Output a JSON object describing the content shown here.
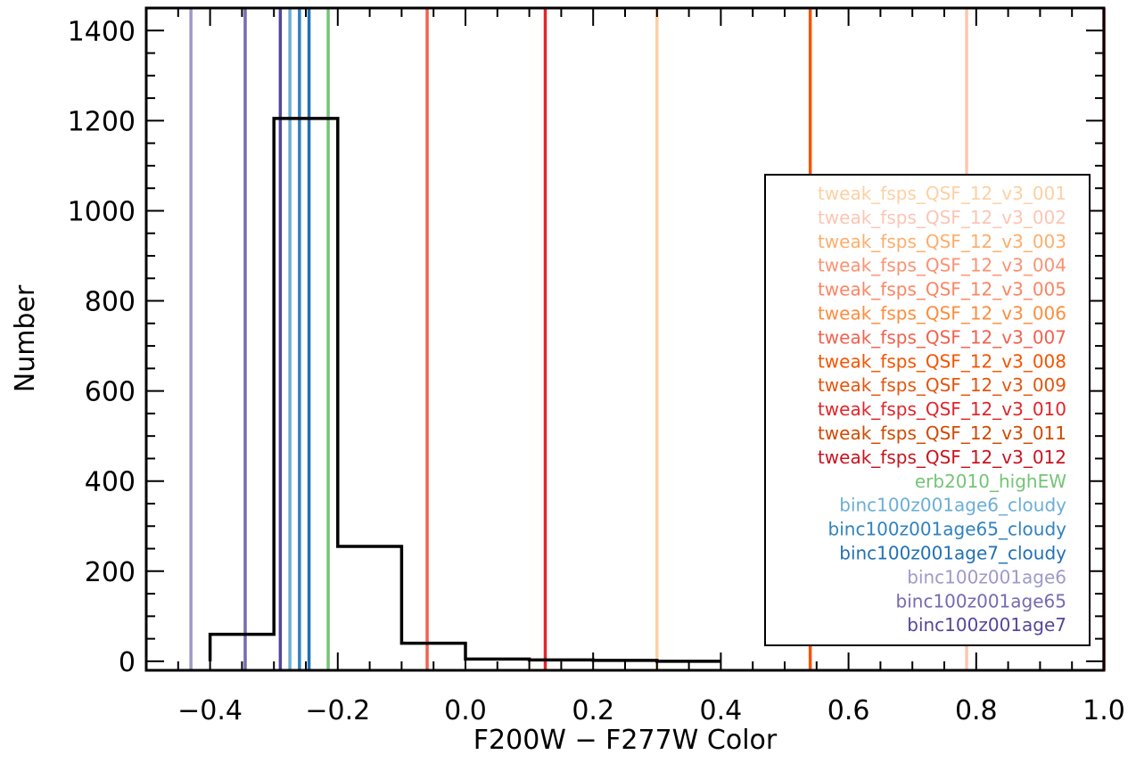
{
  "chart_data": {
    "type": "bar",
    "subtype": "step-histogram-with-vertical-reference-lines",
    "xlabel": "F200W − F277W Color",
    "ylabel": "Number",
    "xlim": [
      -0.5,
      1.0
    ],
    "ylim": [
      -20,
      1450
    ],
    "x_ticks": [
      -0.4,
      -0.2,
      0.0,
      0.2,
      0.4,
      0.6,
      0.8,
      1.0
    ],
    "x_tick_labels": [
      "−0.4",
      "−0.2",
      "0.0",
      "0.2",
      "0.4",
      "0.6",
      "0.8",
      "1.0"
    ],
    "y_ticks": [
      0,
      200,
      400,
      600,
      800,
      1000,
      1200,
      1400
    ],
    "y_tick_labels": [
      "0",
      "200",
      "400",
      "600",
      "800",
      "1000",
      "1200",
      "1400"
    ],
    "grid": false,
    "histogram": {
      "bin_edges": [
        -0.4,
        -0.3,
        -0.2,
        -0.1,
        0.0,
        0.1,
        0.2,
        0.3,
        0.4
      ],
      "counts": [
        60,
        1205,
        255,
        40,
        5,
        3,
        2,
        0
      ],
      "color": "#000000"
    },
    "legend_position": "right",
    "series": [
      {
        "name": "tweak_fsps_QSF_12_v3_001",
        "x": 0.3,
        "color": "#FDD0A2"
      },
      {
        "name": "tweak_fsps_QSF_12_v3_002",
        "x": 0.785,
        "color": "#FCC5B3"
      },
      {
        "name": "tweak_fsps_QSF_12_v3_003",
        "x": null,
        "color": "#FDAE6B"
      },
      {
        "name": "tweak_fsps_QSF_12_v3_004",
        "x": null,
        "color": "#FC9272"
      },
      {
        "name": "tweak_fsps_QSF_12_v3_005",
        "x": null,
        "color": "#FB8563"
      },
      {
        "name": "tweak_fsps_QSF_12_v3_006",
        "x": null,
        "color": "#FD8D3C"
      },
      {
        "name": "tweak_fsps_QSF_12_v3_007",
        "x": -0.06,
        "color": "#F2614D"
      },
      {
        "name": "tweak_fsps_QSF_12_v3_008",
        "x": 0.54,
        "color": "#F45400"
      },
      {
        "name": "tweak_fsps_QSF_12_v3_009",
        "x": null,
        "color": "#E6550D"
      },
      {
        "name": "tweak_fsps_QSF_12_v3_010",
        "x": 0.125,
        "color": "#E0262A"
      },
      {
        "name": "tweak_fsps_QSF_12_v3_011",
        "x": null,
        "color": "#D04A02"
      },
      {
        "name": "tweak_fsps_QSF_12_v3_012",
        "x": 1.0,
        "color": "#C8141E"
      },
      {
        "name": "erb2010_highEW",
        "x": -0.215,
        "color": "#74C476"
      },
      {
        "name": "binc100z001age6_cloudy",
        "x": -0.275,
        "color": "#6BAED6"
      },
      {
        "name": "binc100z001age65_cloudy",
        "x": -0.26,
        "color": "#3182BD"
      },
      {
        "name": "binc100z001age7_cloudy",
        "x": -0.245,
        "color": "#2171B5"
      },
      {
        "name": "binc100z001age6",
        "x": -0.43,
        "color": "#9E9AC8"
      },
      {
        "name": "binc100z001age65",
        "x": -0.345,
        "color": "#756BB1"
      },
      {
        "name": "binc100z001age7",
        "x": -0.29,
        "color": "#54469A"
      }
    ]
  }
}
